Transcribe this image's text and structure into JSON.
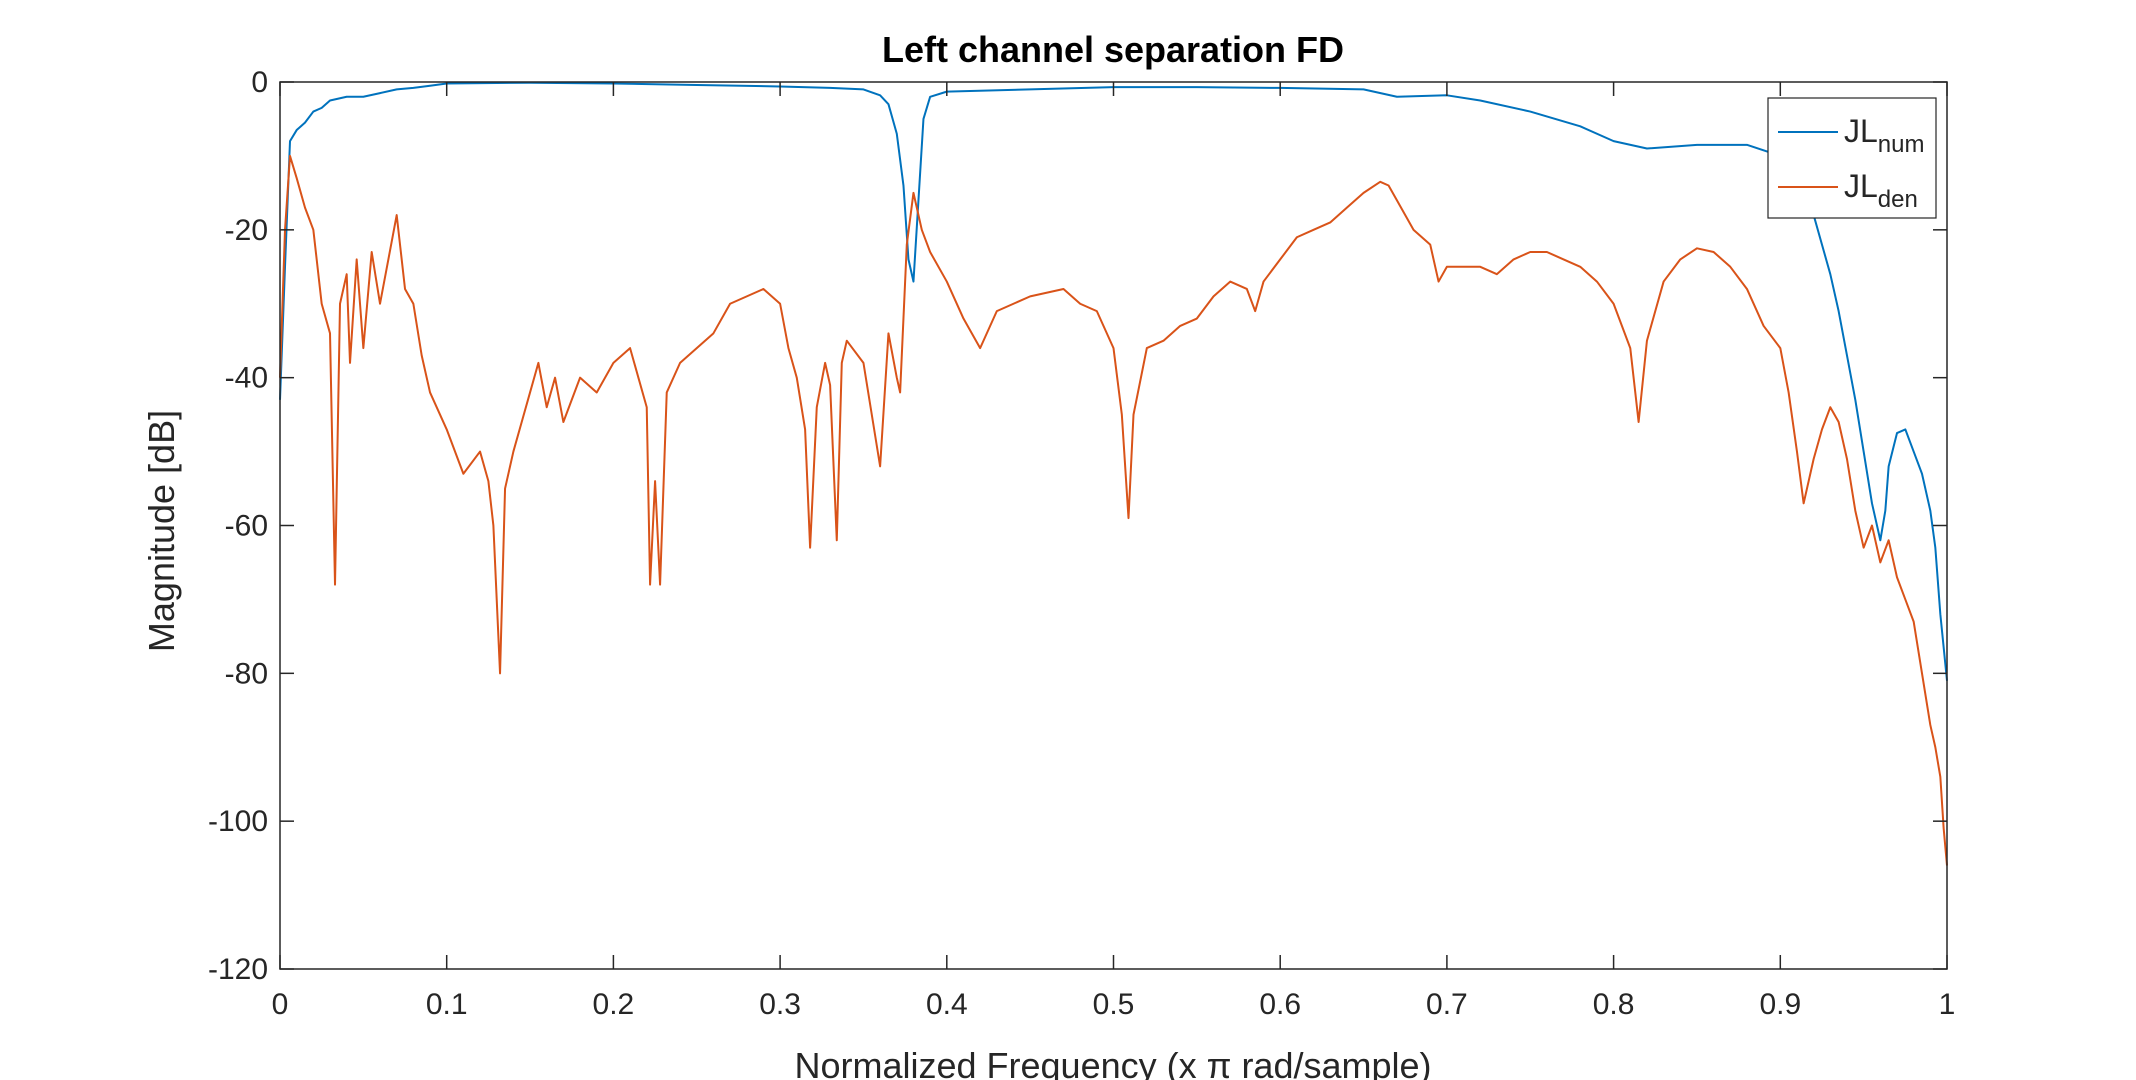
{
  "chart_data": {
    "type": "line",
    "title": "Left channel separation FD",
    "xlabel": "Normalized Frequency (x π rad/sample)",
    "ylabel": "Magnitude [dB]",
    "xlim": [
      0,
      1
    ],
    "ylim": [
      -120,
      0
    ],
    "xticks": [
      "0",
      "0.1",
      "0.2",
      "0.3",
      "0.4",
      "0.5",
      "0.6",
      "0.7",
      "0.8",
      "0.9",
      "1"
    ],
    "yticks": [
      "0",
      "-20",
      "-40",
      "-60",
      "-80",
      "-100",
      "-120"
    ],
    "grid": false,
    "legend_position": "top-right",
    "legend": [
      {
        "base": "JL",
        "sub": "num"
      },
      {
        "base": "JL",
        "sub": "den"
      }
    ],
    "series": [
      {
        "color": "#0072BD",
        "points": [
          [
            0.0,
            -43
          ],
          [
            0.003,
            -25
          ],
          [
            0.006,
            -8
          ],
          [
            0.01,
            -6.5
          ],
          [
            0.015,
            -5.5
          ],
          [
            0.02,
            -4
          ],
          [
            0.025,
            -3.5
          ],
          [
            0.03,
            -2.5
          ],
          [
            0.04,
            -2
          ],
          [
            0.05,
            -2
          ],
          [
            0.06,
            -1.5
          ],
          [
            0.07,
            -1
          ],
          [
            0.08,
            -0.8
          ],
          [
            0.09,
            -0.5
          ],
          [
            0.1,
            -0.2
          ],
          [
            0.15,
            -0.1
          ],
          [
            0.2,
            -0.2
          ],
          [
            0.25,
            -0.4
          ],
          [
            0.3,
            -0.6
          ],
          [
            0.33,
            -0.8
          ],
          [
            0.35,
            -1
          ],
          [
            0.36,
            -1.8
          ],
          [
            0.365,
            -3
          ],
          [
            0.37,
            -7
          ],
          [
            0.374,
            -14
          ],
          [
            0.377,
            -24
          ],
          [
            0.38,
            -27
          ],
          [
            0.383,
            -16
          ],
          [
            0.386,
            -5
          ],
          [
            0.39,
            -2
          ],
          [
            0.4,
            -1.3
          ],
          [
            0.45,
            -1
          ],
          [
            0.5,
            -0.7
          ],
          [
            0.55,
            -0.7
          ],
          [
            0.6,
            -0.8
          ],
          [
            0.65,
            -1
          ],
          [
            0.67,
            -2
          ],
          [
            0.7,
            -1.8
          ],
          [
            0.72,
            -2.5
          ],
          [
            0.75,
            -4
          ],
          [
            0.78,
            -6
          ],
          [
            0.8,
            -8
          ],
          [
            0.82,
            -9
          ],
          [
            0.85,
            -8.5
          ],
          [
            0.88,
            -8.5
          ],
          [
            0.9,
            -10
          ],
          [
            0.91,
            -12
          ],
          [
            0.92,
            -18
          ],
          [
            0.93,
            -26
          ],
          [
            0.935,
            -31
          ],
          [
            0.94,
            -37
          ],
          [
            0.945,
            -43
          ],
          [
            0.95,
            -50
          ],
          [
            0.955,
            -57
          ],
          [
            0.96,
            -62
          ],
          [
            0.963,
            -58
          ],
          [
            0.965,
            -52
          ],
          [
            0.97,
            -47.5
          ],
          [
            0.975,
            -47
          ],
          [
            0.98,
            -50
          ],
          [
            0.985,
            -53
          ],
          [
            0.99,
            -58
          ],
          [
            0.993,
            -63
          ],
          [
            0.996,
            -72
          ],
          [
            1.0,
            -81
          ]
        ]
      },
      {
        "color": "#D95319",
        "points": [
          [
            0.0,
            -40
          ],
          [
            0.003,
            -20
          ],
          [
            0.006,
            -10
          ],
          [
            0.01,
            -13
          ],
          [
            0.015,
            -17
          ],
          [
            0.02,
            -20
          ],
          [
            0.025,
            -30
          ],
          [
            0.03,
            -34
          ],
          [
            0.033,
            -68
          ],
          [
            0.036,
            -30
          ],
          [
            0.04,
            -26
          ],
          [
            0.042,
            -38
          ],
          [
            0.046,
            -24
          ],
          [
            0.05,
            -36
          ],
          [
            0.055,
            -23
          ],
          [
            0.06,
            -30
          ],
          [
            0.065,
            -24
          ],
          [
            0.07,
            -18
          ],
          [
            0.075,
            -28
          ],
          [
            0.08,
            -30
          ],
          [
            0.085,
            -37
          ],
          [
            0.09,
            -42
          ],
          [
            0.1,
            -47
          ],
          [
            0.11,
            -53
          ],
          [
            0.12,
            -50
          ],
          [
            0.125,
            -54
          ],
          [
            0.128,
            -60
          ],
          [
            0.132,
            -80
          ],
          [
            0.135,
            -55
          ],
          [
            0.14,
            -50
          ],
          [
            0.145,
            -46
          ],
          [
            0.15,
            -42
          ],
          [
            0.155,
            -38
          ],
          [
            0.16,
            -44
          ],
          [
            0.165,
            -40
          ],
          [
            0.17,
            -46
          ],
          [
            0.18,
            -40
          ],
          [
            0.19,
            -42
          ],
          [
            0.2,
            -38
          ],
          [
            0.21,
            -36
          ],
          [
            0.215,
            -40
          ],
          [
            0.22,
            -44
          ],
          [
            0.222,
            -68
          ],
          [
            0.225,
            -54
          ],
          [
            0.228,
            -68
          ],
          [
            0.232,
            -42
          ],
          [
            0.24,
            -38
          ],
          [
            0.25,
            -36
          ],
          [
            0.26,
            -34
          ],
          [
            0.27,
            -30
          ],
          [
            0.28,
            -29
          ],
          [
            0.29,
            -28
          ],
          [
            0.3,
            -30
          ],
          [
            0.305,
            -36
          ],
          [
            0.31,
            -40
          ],
          [
            0.315,
            -47
          ],
          [
            0.318,
            -63
          ],
          [
            0.322,
            -44
          ],
          [
            0.327,
            -38
          ],
          [
            0.33,
            -41
          ],
          [
            0.334,
            -62
          ],
          [
            0.337,
            -38
          ],
          [
            0.34,
            -35
          ],
          [
            0.35,
            -38
          ],
          [
            0.36,
            -52
          ],
          [
            0.365,
            -34
          ],
          [
            0.37,
            -40
          ],
          [
            0.372,
            -42
          ],
          [
            0.376,
            -22
          ],
          [
            0.38,
            -15
          ],
          [
            0.385,
            -20
          ],
          [
            0.39,
            -23
          ],
          [
            0.4,
            -27
          ],
          [
            0.41,
            -32
          ],
          [
            0.42,
            -36
          ],
          [
            0.43,
            -31
          ],
          [
            0.44,
            -30
          ],
          [
            0.45,
            -29
          ],
          [
            0.47,
            -28
          ],
          [
            0.48,
            -30
          ],
          [
            0.49,
            -31
          ],
          [
            0.5,
            -36
          ],
          [
            0.505,
            -45
          ],
          [
            0.509,
            -59
          ],
          [
            0.512,
            -45
          ],
          [
            0.52,
            -36
          ],
          [
            0.53,
            -35
          ],
          [
            0.54,
            -33
          ],
          [
            0.55,
            -32
          ],
          [
            0.56,
            -29
          ],
          [
            0.57,
            -27
          ],
          [
            0.58,
            -28
          ],
          [
            0.585,
            -31
          ],
          [
            0.59,
            -27
          ],
          [
            0.6,
            -24
          ],
          [
            0.61,
            -21
          ],
          [
            0.62,
            -20
          ],
          [
            0.63,
            -19
          ],
          [
            0.64,
            -17
          ],
          [
            0.65,
            -15
          ],
          [
            0.66,
            -13.5
          ],
          [
            0.665,
            -14
          ],
          [
            0.67,
            -16
          ],
          [
            0.68,
            -20
          ],
          [
            0.69,
            -22
          ],
          [
            0.695,
            -27
          ],
          [
            0.7,
            -25
          ],
          [
            0.72,
            -25
          ],
          [
            0.73,
            -26
          ],
          [
            0.74,
            -24
          ],
          [
            0.75,
            -23
          ],
          [
            0.76,
            -23
          ],
          [
            0.77,
            -24
          ],
          [
            0.78,
            -25
          ],
          [
            0.79,
            -27
          ],
          [
            0.8,
            -30
          ],
          [
            0.81,
            -36
          ],
          [
            0.815,
            -46
          ],
          [
            0.82,
            -35
          ],
          [
            0.825,
            -31
          ],
          [
            0.83,
            -27
          ],
          [
            0.84,
            -24
          ],
          [
            0.85,
            -22.5
          ],
          [
            0.86,
            -23
          ],
          [
            0.87,
            -25
          ],
          [
            0.88,
            -28
          ],
          [
            0.89,
            -33
          ],
          [
            0.9,
            -36
          ],
          [
            0.905,
            -42
          ],
          [
            0.91,
            -50
          ],
          [
            0.914,
            -57
          ],
          [
            0.92,
            -51
          ],
          [
            0.925,
            -47
          ],
          [
            0.93,
            -44
          ],
          [
            0.935,
            -46
          ],
          [
            0.94,
            -51
          ],
          [
            0.945,
            -58
          ],
          [
            0.95,
            -63
          ],
          [
            0.955,
            -60
          ],
          [
            0.96,
            -65
          ],
          [
            0.965,
            -62
          ],
          [
            0.97,
            -67
          ],
          [
            0.975,
            -70
          ],
          [
            0.98,
            -73
          ],
          [
            0.985,
            -80
          ],
          [
            0.99,
            -87
          ],
          [
            0.993,
            -90
          ],
          [
            0.996,
            -94
          ],
          [
            0.998,
            -101
          ],
          [
            1.0,
            -106
          ]
        ]
      }
    ]
  }
}
